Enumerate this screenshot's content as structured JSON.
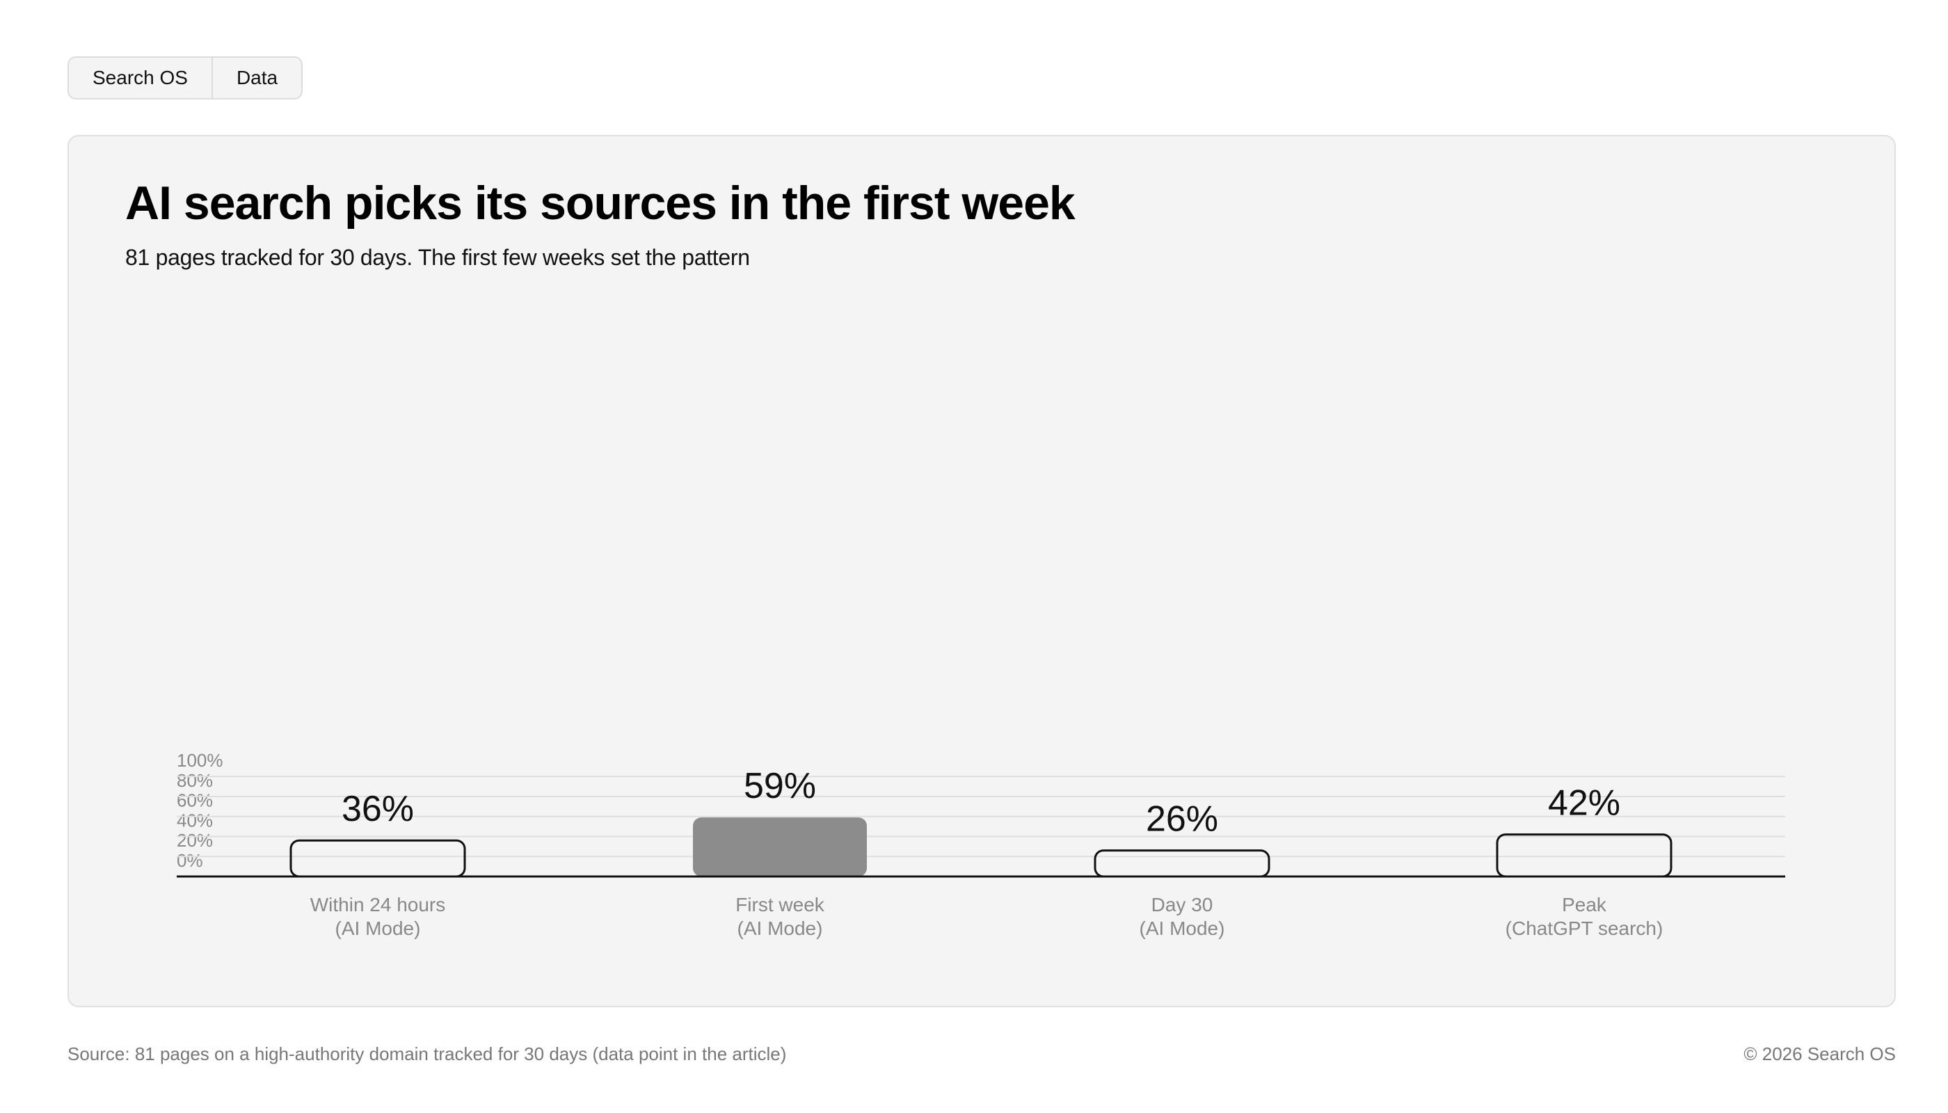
{
  "tabs": [
    {
      "label": "Search OS"
    },
    {
      "label": "Data"
    }
  ],
  "colors": {
    "highlight_bar": "#8c8c8c",
    "bar_outline": "#111111",
    "grid": "#dedede",
    "tick_text": "#888888",
    "card_bg": "#f4f4f4"
  },
  "chart_data": {
    "type": "bar",
    "title": "AI search picks its sources in the first week",
    "subtitle": "81 pages tracked for 30 days. The first few weeks set the pattern",
    "categories": [
      [
        "Within 24 hours",
        "(AI Mode)"
      ],
      [
        "First week",
        "(AI Mode)"
      ],
      [
        "Day 30",
        "(AI Mode)"
      ],
      [
        "Peak",
        "(ChatGPT search)"
      ]
    ],
    "values": [
      36,
      59,
      26,
      42
    ],
    "value_labels": [
      "36%",
      "59%",
      "26%",
      "42%"
    ],
    "highlighted_index": 1,
    "ylim": [
      0,
      100
    ],
    "yticks": [
      0,
      20,
      40,
      60,
      80,
      100
    ],
    "ytick_labels": [
      "0%",
      "20%",
      "40%",
      "60%",
      "80%",
      "100%"
    ],
    "grid": true,
    "xlabel": "",
    "ylabel": ""
  },
  "footer": {
    "source": "Source: 81 pages on a high-authority domain tracked for 30 days (data point in the article)",
    "copyright": "© 2026 Search OS"
  }
}
